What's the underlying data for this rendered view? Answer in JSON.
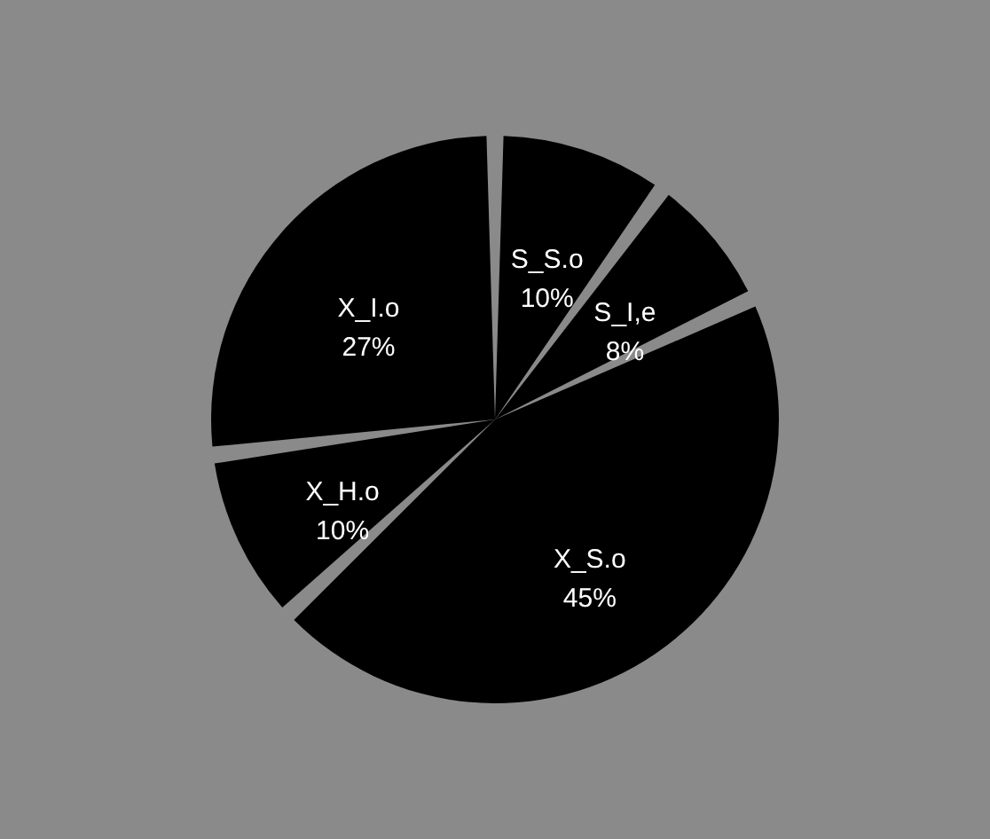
{
  "chart_data": {
    "type": "pie",
    "categories": [
      "S_S.o",
      "S_I,e",
      "X_S.o",
      "X_H.o",
      "X_I.o"
    ],
    "values": [
      10,
      8,
      45,
      10,
      27
    ],
    "value_labels": [
      "10%",
      "8%",
      "45%",
      "10%",
      "27%"
    ],
    "colors": [
      "#000000",
      "#000000",
      "#000000",
      "#000000",
      "#000000"
    ]
  }
}
